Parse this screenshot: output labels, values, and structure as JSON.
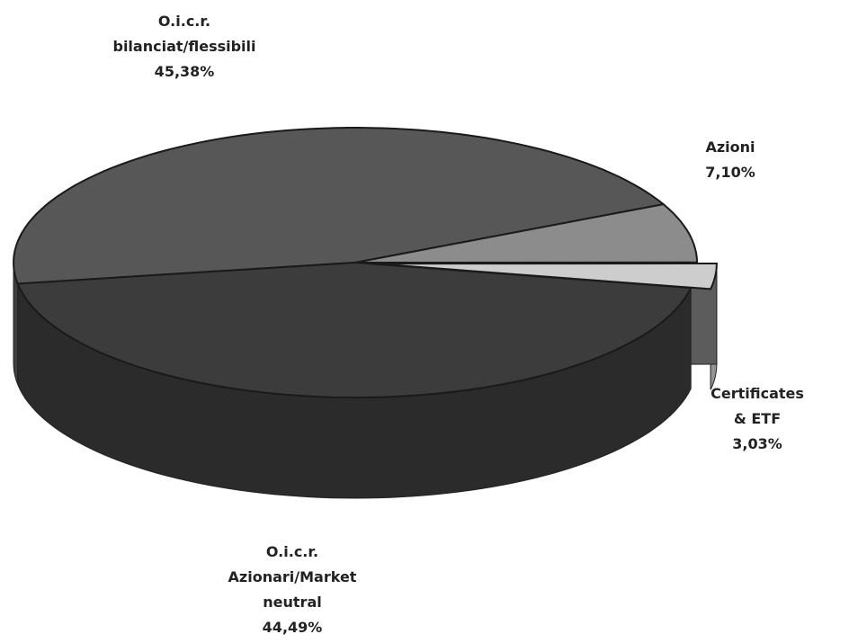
{
  "chart_data": {
    "type": "pie3d",
    "categories": [
      "O.i.c.r.\nbilanciat/flessibili",
      "Azioni",
      "Certificates & ETF",
      "O.i.c.r.\nAzionari/Market\nneutral"
    ],
    "values": [
      45.38,
      7.1,
      3.03,
      44.49
    ],
    "value_labels": [
      "45,38%",
      "7,10%",
      "3,03%",
      "44,49%"
    ],
    "colors": [
      "#575757",
      "#8c8c8c",
      "#cdcdcd",
      "#3c3c3c"
    ],
    "exploded": [
      false,
      false,
      true,
      false
    ]
  }
}
